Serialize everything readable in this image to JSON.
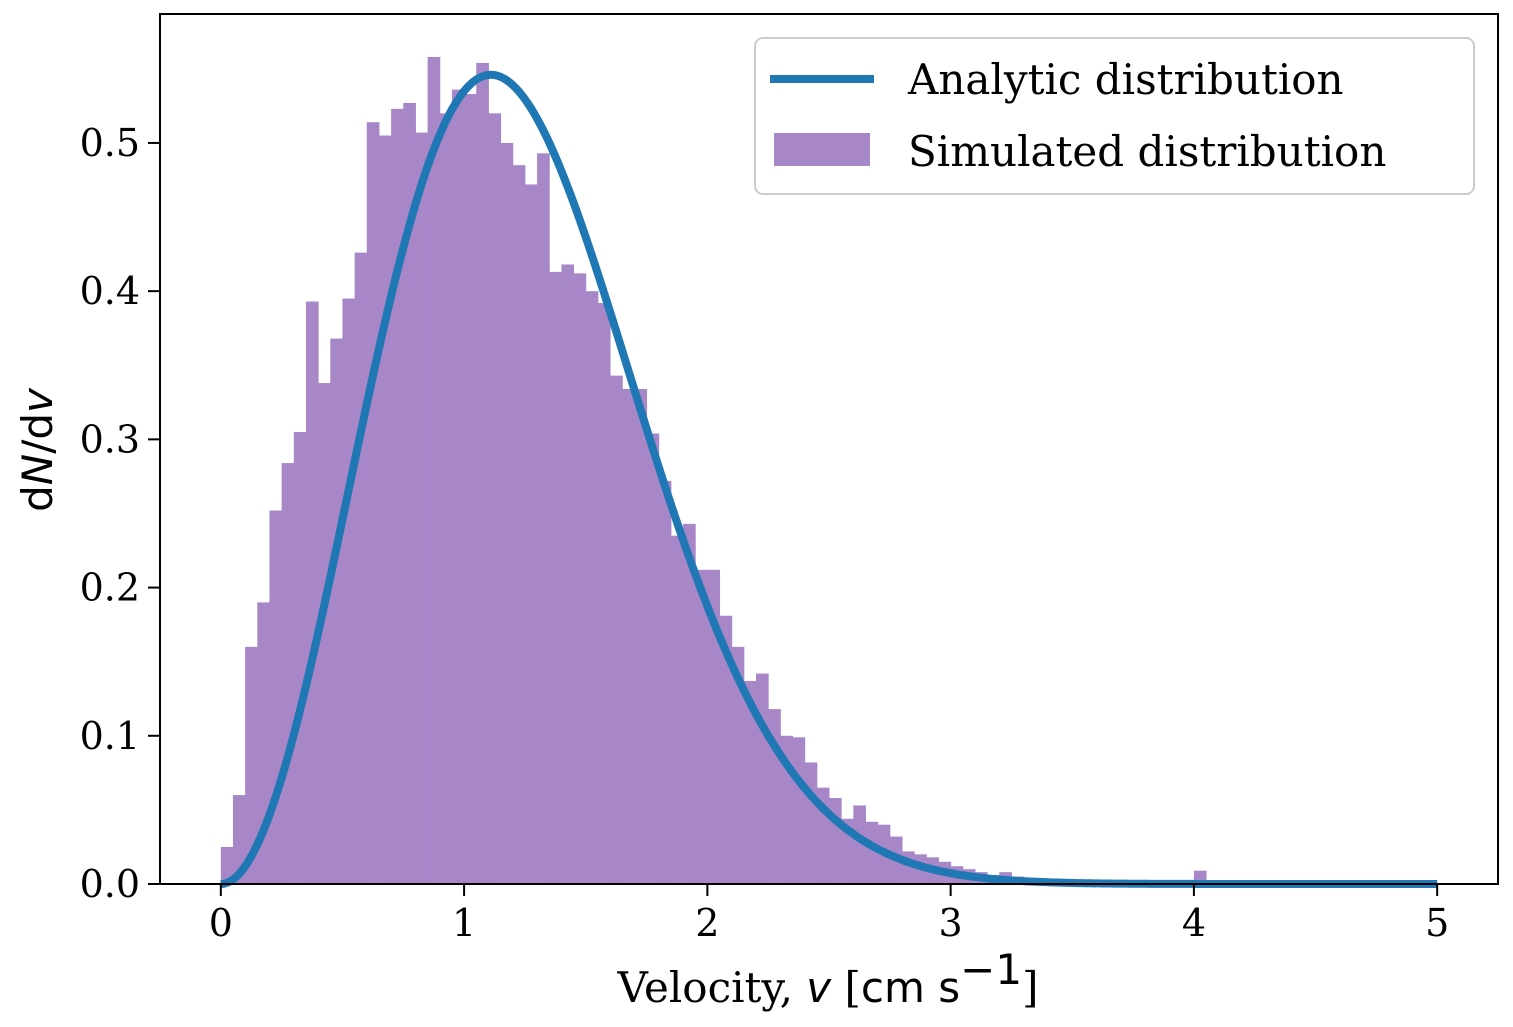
{
  "chart_data": {
    "type": "histogram+line",
    "xlabel_prefix": "Velocity, ",
    "xlabel_var": "v",
    "xlabel_unit": "cm s",
    "xlabel_exp": "−1",
    "ylabel_d1": "d",
    "ylabel_n": "N",
    "ylabel_slash": "/d",
    "ylabel_v": "v",
    "xlim": [
      -0.25,
      5.25
    ],
    "ylim": [
      0,
      0.587
    ],
    "x_ticks": [
      0,
      1,
      2,
      3,
      4,
      5
    ],
    "x_tick_labels": [
      "0",
      "1",
      "2",
      "3",
      "4",
      "5"
    ],
    "y_ticks": [
      0,
      0.1,
      0.2,
      0.3,
      0.4,
      0.5
    ],
    "y_tick_labels": [
      "0.0",
      "0.1",
      "0.2",
      "0.3",
      "0.4",
      "0.5"
    ],
    "legend": {
      "placement": "top-right",
      "entries": [
        "Analytic distribution",
        "Simulated distribution"
      ]
    },
    "line_series": {
      "name": "Analytic distribution",
      "color": "#1f77b4",
      "formula": "maxwell_2d_like",
      "peak_x": 1.11,
      "peak_y": 0.546,
      "x_range": [
        0,
        5
      ]
    },
    "histogram": {
      "name": "Simulated distribution",
      "color": "#a887c9",
      "bin_start": 0.0,
      "bin_width": 0.05,
      "values": [
        0.025,
        0.06,
        0.16,
        0.19,
        0.252,
        0.284,
        0.305,
        0.393,
        0.338,
        0.368,
        0.395,
        0.426,
        0.514,
        0.505,
        0.523,
        0.527,
        0.507,
        0.558,
        0.52,
        0.536,
        0.533,
        0.554,
        0.52,
        0.5,
        0.485,
        0.472,
        0.493,
        0.413,
        0.418,
        0.412,
        0.4,
        0.392,
        0.343,
        0.334,
        0.334,
        0.304,
        0.272,
        0.235,
        0.243,
        0.212,
        0.212,
        0.181,
        0.16,
        0.137,
        0.142,
        0.118,
        0.1,
        0.099,
        0.082,
        0.065,
        0.058,
        0.044,
        0.053,
        0.042,
        0.04,
        0.032,
        0.022,
        0.02,
        0.018,
        0.015,
        0.012,
        0.01,
        0.008,
        0.006,
        0.008,
        0.005,
        0.004,
        0.003,
        0.003,
        0.002,
        0.002,
        0.001,
        0.001,
        0.001,
        0.001,
        0.001,
        0.0,
        0.0,
        0.0,
        0.0,
        0.009,
        0.002,
        0.0,
        0.0,
        0.0,
        0.0,
        0.0,
        0.0,
        0.0,
        0.0
      ]
    }
  }
}
